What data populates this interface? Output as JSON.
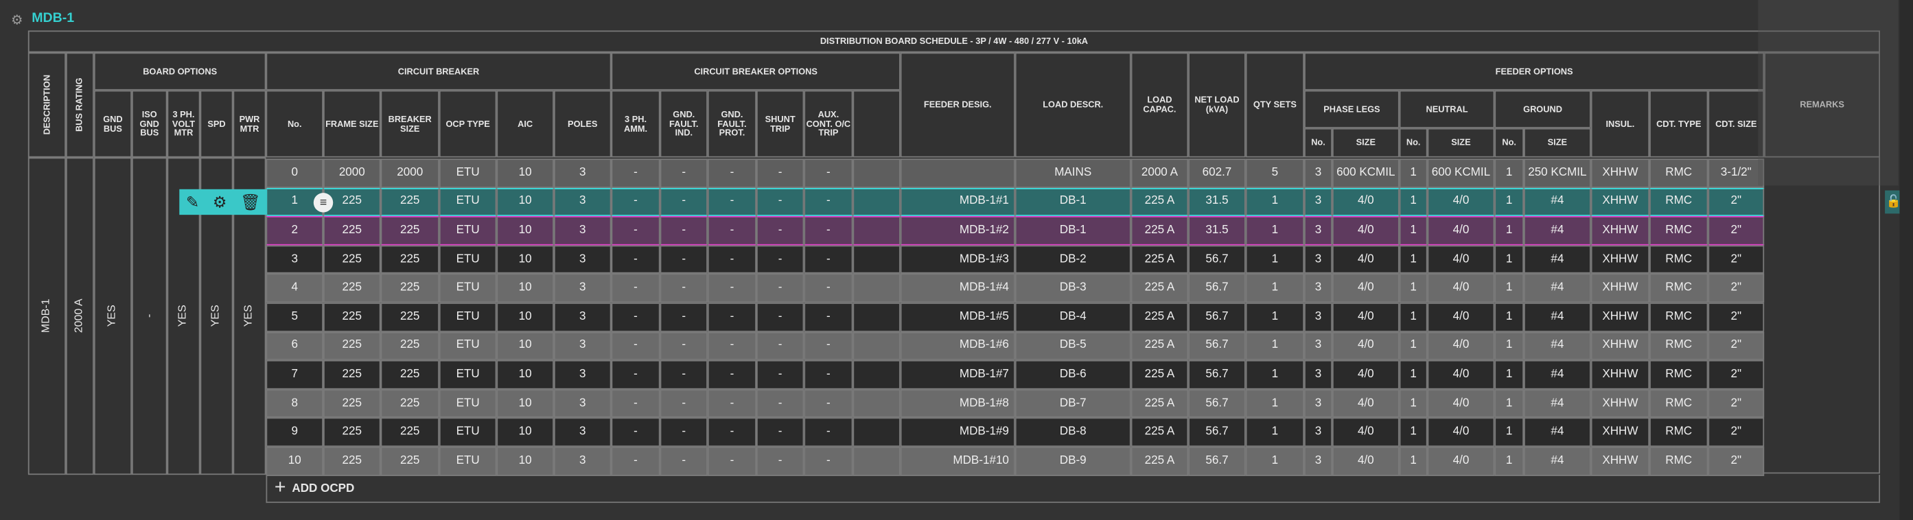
{
  "panel": {
    "title": "MDB-1"
  },
  "header": {
    "schedule_title": "DISTRIBUTION BOARD SCHEDULE - 3P / 4W - 480 / 277 V - 10kA",
    "description": "DESCRIPTION",
    "bus_rating": "BUS RATING",
    "board_options": "BOARD OPTIONS",
    "gnd_bus": "GND BUS",
    "iso_gnd_bus": "ISO GND BUS",
    "volt_mtr": "3 PH. VOLT MTR",
    "spd": "SPD",
    "pwr_mtr": "PWR MTR",
    "circuit_breaker": "CIRCUIT BREAKER",
    "no": "No.",
    "frame_size": "FRAME SIZE",
    "breaker_size": "BREAKER SIZE",
    "ocp_type": "OCP TYPE",
    "aic": "AIC",
    "poles": "POLES",
    "cb_options": "CIRCUIT BREAKER OPTIONS",
    "ph_amm": "3 PH. AMM.",
    "gnd_fault_ind": "GND. FAULT. IND.",
    "gnd_fault_prot": "GND. FAULT. PROT.",
    "shunt_trip": "SHUNT TRIP",
    "aux_cont": "AUX. CONT. O/C TRIP",
    "feeder_desig": "FEEDER DESIG.",
    "load_descr": "LOAD DESCR.",
    "load_capac": "LOAD CAPAC.",
    "net_load": "NET LOAD (kVA)",
    "qty_sets": "QTY SETS",
    "feeder_options": "FEEDER OPTIONS",
    "phase_legs": "PHASE LEGS",
    "neutral": "NEUTRAL",
    "ground": "GROUND",
    "sub_no": "No.",
    "sub_size": "SIZE",
    "insul": "INSUL.",
    "cdt_type": "CDT. TYPE",
    "cdt_size": "CDT. SIZE",
    "remarks": "REMARKS"
  },
  "board": {
    "description": "MDB-1",
    "bus_rating": "2000 A",
    "gnd_bus": "YES",
    "iso_gnd_bus": "-",
    "volt_mtr": "YES",
    "spd": "YES",
    "pwr_mtr": "YES"
  },
  "rows": [
    {
      "no": "0",
      "frame": "2000",
      "breaker": "2000",
      "ocp": "ETU",
      "aic": "10",
      "poles": "3",
      "amm": "-",
      "gfi": "-",
      "gfp": "-",
      "shunt": "-",
      "aux": "-",
      "feeder": "",
      "load": "MAINS",
      "capac": "2000 A",
      "net": "602.7",
      "qty": "5",
      "ph_no": "3",
      "ph_size": "600 KCMIL",
      "n_no": "1",
      "n_size": "600 KCMIL",
      "g_no": "1",
      "g_size": "250 KCMIL",
      "insul": "XHHW",
      "cdt_type": "RMC",
      "cdt_size": "3-1/2\""
    },
    {
      "no": "1",
      "frame": "225",
      "breaker": "225",
      "ocp": "ETU",
      "aic": "10",
      "poles": "3",
      "amm": "-",
      "gfi": "-",
      "gfp": "-",
      "shunt": "-",
      "aux": "-",
      "feeder": "MDB-1#1",
      "load": "DB-1",
      "capac": "225 A",
      "net": "31.5",
      "qty": "1",
      "ph_no": "3",
      "ph_size": "4/0",
      "n_no": "1",
      "n_size": "4/0",
      "g_no": "1",
      "g_size": "#4",
      "insul": "XHHW",
      "cdt_type": "RMC",
      "cdt_size": "2\""
    },
    {
      "no": "2",
      "frame": "225",
      "breaker": "225",
      "ocp": "ETU",
      "aic": "10",
      "poles": "3",
      "amm": "-",
      "gfi": "-",
      "gfp": "-",
      "shunt": "-",
      "aux": "-",
      "feeder": "MDB-1#2",
      "load": "DB-1",
      "capac": "225 A",
      "net": "31.5",
      "qty": "1",
      "ph_no": "3",
      "ph_size": "4/0",
      "n_no": "1",
      "n_size": "4/0",
      "g_no": "1",
      "g_size": "#4",
      "insul": "XHHW",
      "cdt_type": "RMC",
      "cdt_size": "2\""
    },
    {
      "no": "3",
      "frame": "225",
      "breaker": "225",
      "ocp": "ETU",
      "aic": "10",
      "poles": "3",
      "amm": "-",
      "gfi": "-",
      "gfp": "-",
      "shunt": "-",
      "aux": "-",
      "feeder": "MDB-1#3",
      "load": "DB-2",
      "capac": "225 A",
      "net": "56.7",
      "qty": "1",
      "ph_no": "3",
      "ph_size": "4/0",
      "n_no": "1",
      "n_size": "4/0",
      "g_no": "1",
      "g_size": "#4",
      "insul": "XHHW",
      "cdt_type": "RMC",
      "cdt_size": "2\""
    },
    {
      "no": "4",
      "frame": "225",
      "breaker": "225",
      "ocp": "ETU",
      "aic": "10",
      "poles": "3",
      "amm": "-",
      "gfi": "-",
      "gfp": "-",
      "shunt": "-",
      "aux": "-",
      "feeder": "MDB-1#4",
      "load": "DB-3",
      "capac": "225 A",
      "net": "56.7",
      "qty": "1",
      "ph_no": "3",
      "ph_size": "4/0",
      "n_no": "1",
      "n_size": "4/0",
      "g_no": "1",
      "g_size": "#4",
      "insul": "XHHW",
      "cdt_type": "RMC",
      "cdt_size": "2\""
    },
    {
      "no": "5",
      "frame": "225",
      "breaker": "225",
      "ocp": "ETU",
      "aic": "10",
      "poles": "3",
      "amm": "-",
      "gfi": "-",
      "gfp": "-",
      "shunt": "-",
      "aux": "-",
      "feeder": "MDB-1#5",
      "load": "DB-4",
      "capac": "225 A",
      "net": "56.7",
      "qty": "1",
      "ph_no": "3",
      "ph_size": "4/0",
      "n_no": "1",
      "n_size": "4/0",
      "g_no": "1",
      "g_size": "#4",
      "insul": "XHHW",
      "cdt_type": "RMC",
      "cdt_size": "2\""
    },
    {
      "no": "6",
      "frame": "225",
      "breaker": "225",
      "ocp": "ETU",
      "aic": "10",
      "poles": "3",
      "amm": "-",
      "gfi": "-",
      "gfp": "-",
      "shunt": "-",
      "aux": "-",
      "feeder": "MDB-1#6",
      "load": "DB-5",
      "capac": "225 A",
      "net": "56.7",
      "qty": "1",
      "ph_no": "3",
      "ph_size": "4/0",
      "n_no": "1",
      "n_size": "4/0",
      "g_no": "1",
      "g_size": "#4",
      "insul": "XHHW",
      "cdt_type": "RMC",
      "cdt_size": "2\""
    },
    {
      "no": "7",
      "frame": "225",
      "breaker": "225",
      "ocp": "ETU",
      "aic": "10",
      "poles": "3",
      "amm": "-",
      "gfi": "-",
      "gfp": "-",
      "shunt": "-",
      "aux": "-",
      "feeder": "MDB-1#7",
      "load": "DB-6",
      "capac": "225 A",
      "net": "56.7",
      "qty": "1",
      "ph_no": "3",
      "ph_size": "4/0",
      "n_no": "1",
      "n_size": "4/0",
      "g_no": "1",
      "g_size": "#4",
      "insul": "XHHW",
      "cdt_type": "RMC",
      "cdt_size": "2\""
    },
    {
      "no": "8",
      "frame": "225",
      "breaker": "225",
      "ocp": "ETU",
      "aic": "10",
      "poles": "3",
      "amm": "-",
      "gfi": "-",
      "gfp": "-",
      "shunt": "-",
      "aux": "-",
      "feeder": "MDB-1#8",
      "load": "DB-7",
      "capac": "225 A",
      "net": "56.7",
      "qty": "1",
      "ph_no": "3",
      "ph_size": "4/0",
      "n_no": "1",
      "n_size": "4/0",
      "g_no": "1",
      "g_size": "#4",
      "insul": "XHHW",
      "cdt_type": "RMC",
      "cdt_size": "2\""
    },
    {
      "no": "9",
      "frame": "225",
      "breaker": "225",
      "ocp": "ETU",
      "aic": "10",
      "poles": "3",
      "amm": "-",
      "gfi": "-",
      "gfp": "-",
      "shunt": "-",
      "aux": "-",
      "feeder": "MDB-1#9",
      "load": "DB-8",
      "capac": "225 A",
      "net": "56.7",
      "qty": "1",
      "ph_no": "3",
      "ph_size": "4/0",
      "n_no": "1",
      "n_size": "4/0",
      "g_no": "1",
      "g_size": "#4",
      "insul": "XHHW",
      "cdt_type": "RMC",
      "cdt_size": "2\""
    },
    {
      "no": "10",
      "frame": "225",
      "breaker": "225",
      "ocp": "ETU",
      "aic": "10",
      "poles": "3",
      "amm": "-",
      "gfi": "-",
      "gfp": "-",
      "shunt": "-",
      "aux": "-",
      "feeder": "MDB-1#10",
      "load": "DB-9",
      "capac": "225 A",
      "net": "56.7",
      "qty": "1",
      "ph_no": "3",
      "ph_size": "4/0",
      "n_no": "1",
      "n_size": "4/0",
      "g_no": "1",
      "g_size": "#4",
      "insul": "XHHW",
      "cdt_type": "RMC",
      "cdt_size": "2\""
    }
  ],
  "add_ocpd": "ADD OCPD",
  "colors": {
    "accent_cyan": "#3ee0e0",
    "accent_magenta": "#e040c8",
    "title": "#35d0d0"
  }
}
